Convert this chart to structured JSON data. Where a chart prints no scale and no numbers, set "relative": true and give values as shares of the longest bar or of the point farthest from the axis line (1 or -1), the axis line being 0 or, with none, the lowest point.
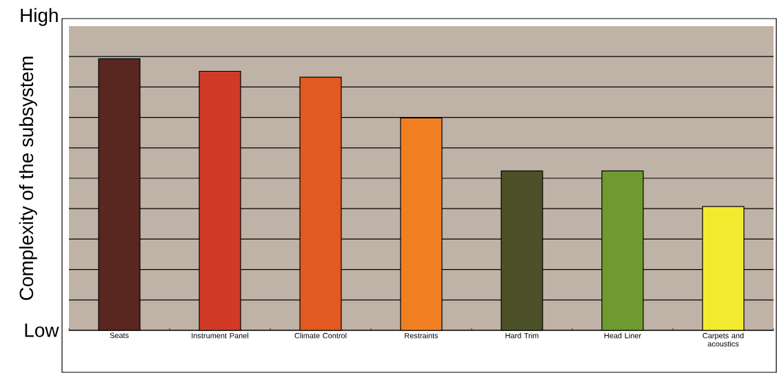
{
  "chart_data": {
    "type": "bar",
    "relative": true,
    "ylabel": "Complexity of the subsystem",
    "annotations": [
      "High",
      "Low"
    ],
    "categories": [
      "Seats",
      "Instrument Panel",
      "Climate Control",
      "Restraints",
      "Hard Trim",
      "Head Liner",
      "Carpets and acoustics"
    ],
    "values": [
      1,
      0.954,
      0.932,
      0.782,
      0.587,
      0.587,
      0.456
    ],
    "colors": [
      "#5a2620",
      "#d13a26",
      "#e05a22",
      "#f07f22",
      "#4d5128",
      "#6e9a30",
      "#f2ea2e"
    ],
    "grid": "y"
  }
}
